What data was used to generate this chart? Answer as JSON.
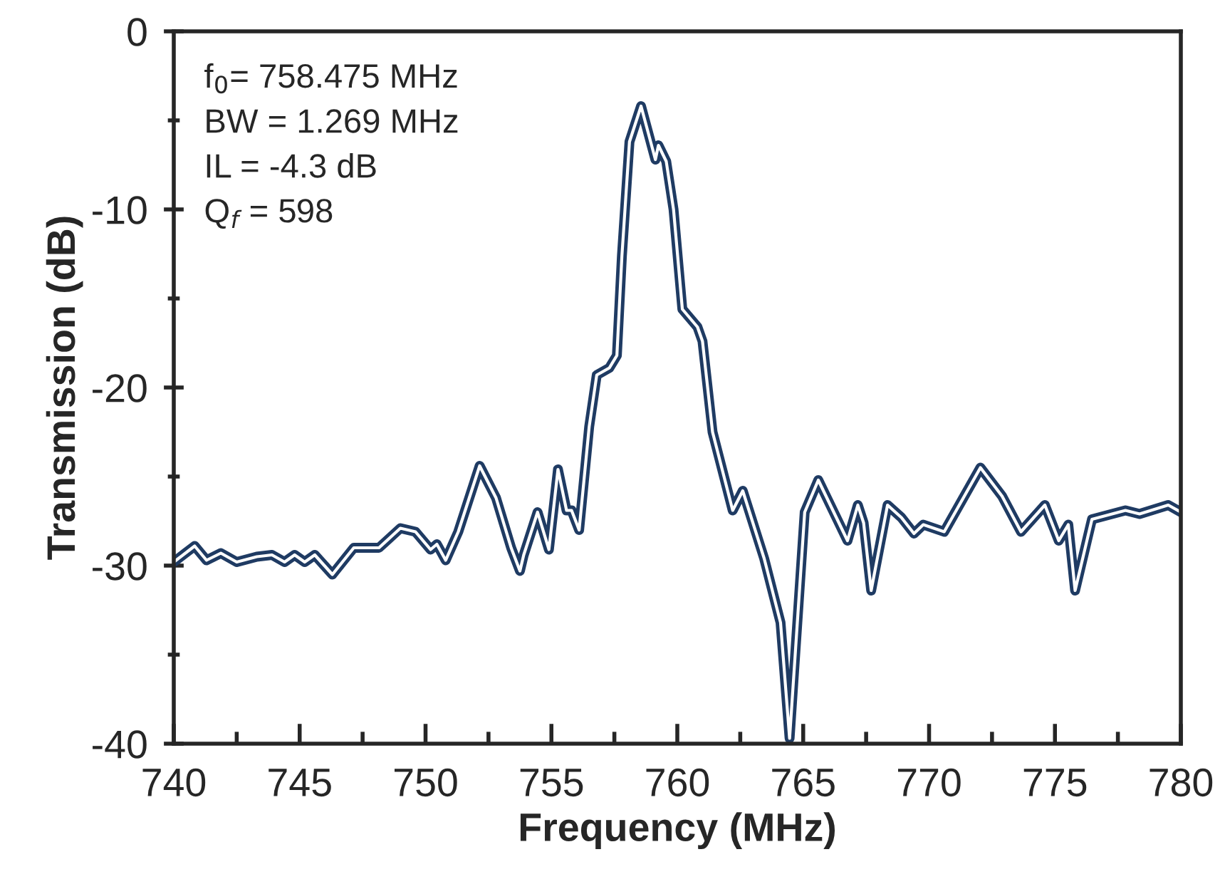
{
  "chart_data": {
    "type": "line",
    "xlabel": "Frequency (MHz)",
    "ylabel": "Transmission (dB)",
    "annotations": [
      "f$_{0}$= 758.475 MHz",
      "BW = 1.269 MHz",
      "IL = -4.3 dB",
      "Q$_{f}$ = 598"
    ],
    "xlim": [
      740,
      780
    ],
    "xticks": [
      740,
      745,
      750,
      755,
      760,
      765,
      770,
      775,
      780
    ],
    "ylim": [
      -40,
      0
    ],
    "yticks": [
      -40,
      -30,
      -20,
      -10,
      0
    ],
    "grid": false,
    "legend": false,
    "marker": "none",
    "line_style": "solid",
    "series": [
      {
        "color": "#1f3b63",
        "x": [
          740,
          740.83,
          741.3,
          741.87,
          742.5,
          743.3,
          743.9,
          744.4,
          744.8,
          745.2,
          745.6,
          746.3,
          747.15,
          748.15,
          749.0,
          749.6,
          750.2,
          750.45,
          750.8,
          751.3,
          752.15,
          752.8,
          753.4,
          753.75,
          753.9,
          754.45,
          754.9,
          755.26,
          755.6,
          755.8,
          756.1,
          756.5,
          756.8,
          757.3,
          757.6,
          757.8,
          758.1,
          758.56,
          759.13,
          759.25,
          759.56,
          759.85,
          760.2,
          760.8,
          761.0,
          761.4,
          762.2,
          762.6,
          763.45,
          764.1,
          764.46,
          765.06,
          765.6,
          766.76,
          767.17,
          767.4,
          767.7,
          768.35,
          768.9,
          769.4,
          769.77,
          770.6,
          772.04,
          772.9,
          773.65,
          774.6,
          775.15,
          775.53,
          775.8,
          776.47,
          777.8,
          778.36,
          779.5,
          780
        ],
        "values": [
          -29.8,
          -28.9,
          -29.7,
          -29.3,
          -29.8,
          -29.5,
          -29.4,
          -29.8,
          -29.4,
          -29.8,
          -29.4,
          -30.5,
          -29.0,
          -29.0,
          -27.9,
          -28.1,
          -29.1,
          -28.8,
          -29.7,
          -28.1,
          -24.4,
          -26.2,
          -29.0,
          -30.3,
          -29.4,
          -27.0,
          -29.1,
          -24.6,
          -26.9,
          -26.9,
          -28.0,
          -22.2,
          -19.3,
          -18.9,
          -18.2,
          -12.6,
          -6.2,
          -4.2,
          -7.2,
          -6.4,
          -7.3,
          -10.0,
          -15.6,
          -16.6,
          -17.4,
          -22.5,
          -26.9,
          -25.8,
          -29.6,
          -33.2,
          -39.7,
          -27.0,
          -25.2,
          -28.6,
          -26.6,
          -27.6,
          -31.4,
          -26.6,
          -27.3,
          -28.2,
          -27.7,
          -28.1,
          -24.5,
          -26.1,
          -28.1,
          -26.6,
          -28.6,
          -27.7,
          -31.4,
          -27.4,
          -26.9,
          -27.1,
          -26.6,
          -27.0
        ]
      }
    ]
  }
}
